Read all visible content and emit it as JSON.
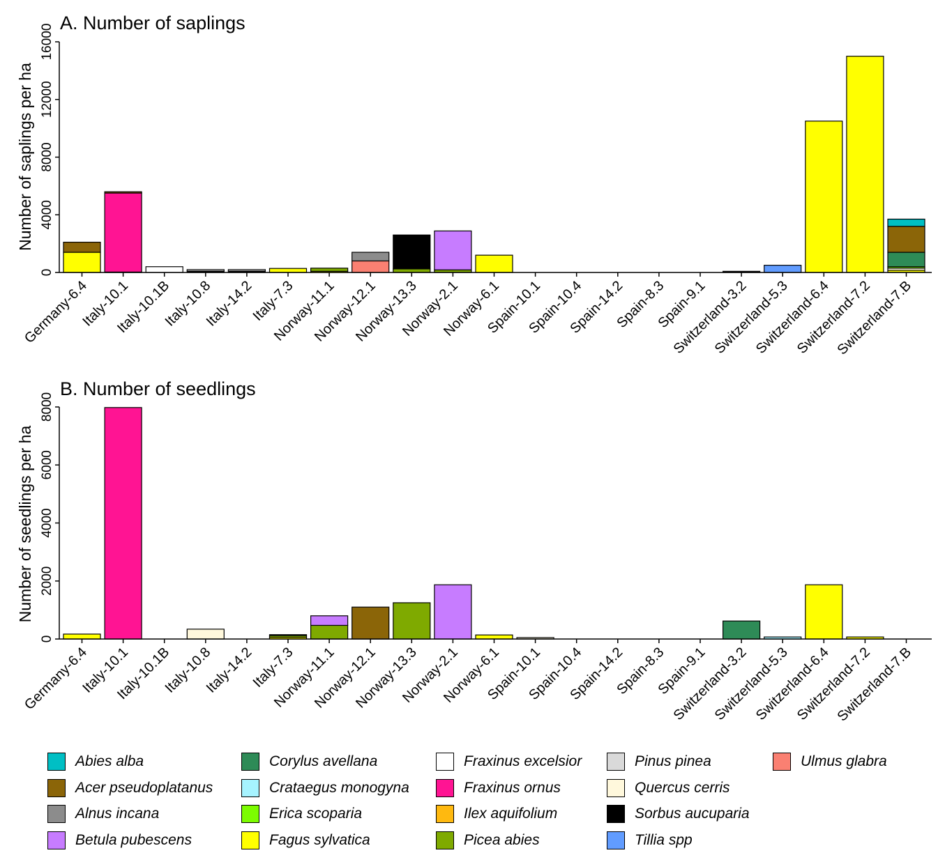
{
  "chart_data": [
    {
      "type": "bar",
      "stacked": true,
      "title": "A. Number of saplings",
      "ylabel": "Number of saplings per ha",
      "xlabel": "",
      "ylim": [
        0,
        16000
      ],
      "yticks": [
        "0",
        "4000",
        "8000",
        "12000",
        "16000"
      ],
      "categories": [
        "Germany-6.4",
        "Italy-10.1",
        "Italy-10.1B",
        "Italy-10.8",
        "Italy-14.2",
        "Italy-7.3",
        "Norway-11.1",
        "Norway-12.1",
        "Norway-13.3",
        "Norway-2.1",
        "Norway-6.1",
        "Spain-10.1",
        "Spain-10.4",
        "Spain-14.2",
        "Spain-8.3",
        "Spain-9.1",
        "Switzerland-3.2",
        "Switzerland-5.3",
        "Switzerland-6.4",
        "Switzerland-7.2",
        "Switzerland-7.B"
      ],
      "series": [
        {
          "name": "Fagus sylvatica",
          "values": [
            1400,
            0,
            0,
            0,
            0,
            280,
            80,
            0,
            0,
            0,
            1200,
            0,
            0,
            0,
            0,
            0,
            0,
            0,
            10500,
            15000,
            150
          ]
        },
        {
          "name": "Quercus cerris",
          "values": [
            0,
            0,
            0,
            0,
            0,
            0,
            0,
            0,
            0,
            0,
            0,
            0,
            0,
            0,
            0,
            0,
            0,
            0,
            0,
            0,
            150
          ]
        },
        {
          "name": "Picea abies",
          "values": [
            0,
            0,
            0,
            0,
            0,
            0,
            220,
            0,
            250,
            180,
            0,
            0,
            0,
            0,
            0,
            0,
            0,
            0,
            0,
            0,
            0
          ]
        },
        {
          "name": "Erica scoparia",
          "values": [
            0,
            0,
            0,
            0,
            0,
            0,
            0,
            0,
            0,
            0,
            0,
            0,
            0,
            0,
            0,
            0,
            0,
            0,
            0,
            0,
            100
          ]
        },
        {
          "name": "Corylus avellana",
          "values": [
            0,
            0,
            0,
            0,
            0,
            0,
            0,
            0,
            0,
            0,
            0,
            0,
            0,
            0,
            0,
            0,
            0,
            0,
            0,
            0,
            1000
          ]
        },
        {
          "name": "Ulmus glabra",
          "values": [
            0,
            0,
            0,
            0,
            0,
            0,
            0,
            800,
            0,
            0,
            0,
            0,
            0,
            0,
            0,
            0,
            0,
            0,
            0,
            0,
            0
          ]
        },
        {
          "name": "Sorbus aucuparia",
          "values": [
            0,
            30,
            0,
            100,
            100,
            0,
            0,
            0,
            2350,
            0,
            0,
            0,
            0,
            0,
            0,
            0,
            80,
            0,
            0,
            0,
            0
          ]
        },
        {
          "name": "Fraxinus ornus",
          "values": [
            0,
            5480,
            0,
            0,
            0,
            0,
            0,
            0,
            0,
            0,
            0,
            0,
            0,
            0,
            0,
            0,
            0,
            0,
            0,
            0,
            0
          ]
        },
        {
          "name": "Fraxinus excelsior",
          "values": [
            0,
            0,
            400,
            100,
            100,
            0,
            0,
            0,
            0,
            0,
            0,
            0,
            0,
            0,
            0,
            0,
            0,
            0,
            0,
            0,
            0
          ]
        },
        {
          "name": "Acer pseudoplatanus",
          "values": [
            700,
            90,
            0,
            0,
            0,
            0,
            0,
            0,
            0,
            0,
            0,
            0,
            0,
            0,
            0,
            0,
            0,
            0,
            0,
            0,
            1800
          ]
        },
        {
          "name": "Alnus incana",
          "values": [
            0,
            0,
            0,
            0,
            0,
            0,
            0,
            600,
            0,
            0,
            0,
            0,
            0,
            0,
            0,
            0,
            0,
            0,
            0,
            0,
            0
          ]
        },
        {
          "name": "Betula pubescens",
          "values": [
            0,
            0,
            0,
            0,
            0,
            0,
            0,
            0,
            0,
            2700,
            0,
            0,
            0,
            0,
            0,
            0,
            0,
            0,
            0,
            0,
            0
          ]
        },
        {
          "name": "Tillia spp",
          "values": [
            0,
            0,
            0,
            0,
            0,
            0,
            0,
            0,
            0,
            0,
            0,
            0,
            0,
            0,
            0,
            0,
            0,
            500,
            0,
            0,
            0
          ]
        },
        {
          "name": "Abies alba",
          "values": [
            0,
            0,
            0,
            0,
            0,
            0,
            0,
            0,
            0,
            0,
            0,
            0,
            0,
            0,
            0,
            0,
            0,
            0,
            0,
            0,
            500
          ]
        }
      ]
    },
    {
      "type": "bar",
      "stacked": true,
      "title": "B. Number of seedlings",
      "ylabel": "Number of seedlings per ha",
      "xlabel": "",
      "ylim": [
        0,
        8000
      ],
      "yticks": [
        "0",
        "2000",
        "4000",
        "6000",
        "8000"
      ],
      "categories": [
        "Germany-6.4",
        "Italy-10.1",
        "Italy-10.1B",
        "Italy-10.8",
        "Italy-14.2",
        "Italy-7.3",
        "Norway-11.1",
        "Norway-12.1",
        "Norway-13.3",
        "Norway-2.1",
        "Norway-6.1",
        "Spain-10.1",
        "Spain-10.4",
        "Spain-14.2",
        "Spain-8.3",
        "Spain-9.1",
        "Switzerland-3.2",
        "Switzerland-5.3",
        "Switzerland-6.4",
        "Switzerland-7.2",
        "Switzerland-7.B"
      ],
      "series": [
        {
          "name": "Fagus sylvatica",
          "values": [
            170,
            0,
            0,
            0,
            0,
            60,
            0,
            0,
            0,
            0,
            140,
            0,
            0,
            0,
            0,
            0,
            0,
            0,
            1870,
            70,
            0
          ]
        },
        {
          "name": "Quercus cerris",
          "values": [
            0,
            0,
            0,
            340,
            0,
            0,
            0,
            0,
            0,
            0,
            0,
            50,
            0,
            0,
            0,
            0,
            0,
            0,
            0,
            0,
            0
          ]
        },
        {
          "name": "Picea abies",
          "values": [
            0,
            0,
            0,
            0,
            0,
            60,
            470,
            0,
            1250,
            0,
            0,
            0,
            0,
            0,
            0,
            0,
            0,
            0,
            0,
            0,
            0
          ]
        },
        {
          "name": "Corylus avellana",
          "values": [
            0,
            0,
            0,
            0,
            0,
            0,
            0,
            0,
            0,
            0,
            0,
            0,
            0,
            0,
            0,
            0,
            620,
            0,
            0,
            0,
            0
          ]
        },
        {
          "name": "Crataegus monogyna",
          "values": [
            0,
            0,
            0,
            0,
            0,
            0,
            0,
            0,
            0,
            0,
            0,
            0,
            0,
            0,
            0,
            0,
            0,
            70,
            0,
            0,
            0
          ]
        },
        {
          "name": "Fraxinus ornus",
          "values": [
            0,
            7980,
            0,
            0,
            0,
            0,
            0,
            0,
            0,
            0,
            0,
            0,
            0,
            0,
            0,
            0,
            0,
            0,
            0,
            0,
            0
          ]
        },
        {
          "name": "Acer pseudoplatanus",
          "values": [
            0,
            0,
            0,
            0,
            0,
            0,
            0,
            1100,
            0,
            0,
            0,
            0,
            0,
            0,
            0,
            0,
            0,
            0,
            0,
            0,
            0
          ]
        },
        {
          "name": "Betula pubescens",
          "values": [
            0,
            0,
            0,
            0,
            0,
            0,
            330,
            0,
            0,
            1870,
            0,
            0,
            0,
            0,
            0,
            0,
            0,
            0,
            0,
            0,
            0
          ]
        },
        {
          "name": "Abies alba",
          "values": [
            0,
            0,
            0,
            0,
            0,
            30,
            0,
            0,
            0,
            0,
            0,
            0,
            0,
            0,
            0,
            0,
            0,
            0,
            0,
            0,
            0
          ]
        }
      ]
    }
  ],
  "legend": {
    "columns": [
      [
        {
          "label": "Abies alba",
          "color": "#00BFC4"
        },
        {
          "label": "Acer pseudoplatanus",
          "color": "#8B6508"
        },
        {
          "label": "Alnus incana",
          "color": "#8C8C8C"
        },
        {
          "label": "Betula pubescens",
          "color": "#C77CFF"
        }
      ],
      [
        {
          "label": "Corylus avellana",
          "color": "#2E8B57"
        },
        {
          "label": "Crataegus monogyna",
          "color": "#A6F3FF"
        },
        {
          "label": "Erica scoparia",
          "color": "#7CFC00"
        },
        {
          "label": "Fagus sylvatica",
          "color": "#FFFF00"
        }
      ],
      [
        {
          "label": "Fraxinus excelsior",
          "color": "#FFFFFF"
        },
        {
          "label": "Fraxinus ornus",
          "color": "#FF1493"
        },
        {
          "label": "Ilex aquifolium",
          "color": "#FFB90F"
        },
        {
          "label": "Picea abies",
          "color": "#7FAA00"
        }
      ],
      [
        {
          "label": "Pinus pinea",
          "color": "#D9D9D9"
        },
        {
          "label": "Quercus cerris",
          "color": "#FFF8DC"
        },
        {
          "label": "Sorbus aucuparia",
          "color": "#000000"
        },
        {
          "label": "Tillia spp",
          "color": "#619CFF"
        }
      ],
      [
        {
          "label": "Ulmus glabra",
          "color": "#FA8072"
        }
      ]
    ]
  }
}
